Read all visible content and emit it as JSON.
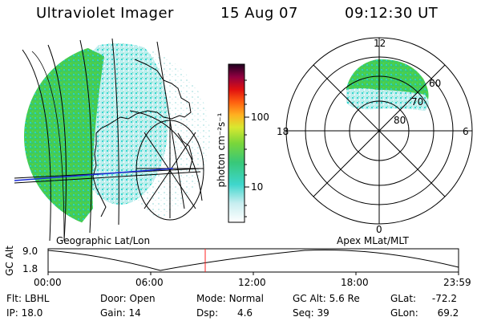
{
  "header": {
    "instrument": "Ultraviolet Imager",
    "date": "15 Aug 07",
    "time": "09:12:30 UT"
  },
  "colorbar": {
    "label": "photon cm⁻²s⁻¹",
    "ticks": [
      {
        "value": 100,
        "label": "100"
      },
      {
        "value": 10,
        "label": "10"
      }
    ],
    "range": [
      2,
      700
    ]
  },
  "map_panels": {
    "left_caption": "Geographic Lat/Lon",
    "right_caption": "Apex MLat/MLT"
  },
  "polar_plot": {
    "mlt_labels": {
      "top": "12",
      "bottom": "0",
      "left": "18",
      "right": "6"
    },
    "lat_rings": [
      {
        "lat": 60,
        "label": "60"
      },
      {
        "lat": 70,
        "label": "70"
      },
      {
        "lat": 80,
        "label": "80"
      }
    ]
  },
  "altitude_plot": {
    "axis_label": "GC Alt",
    "y_ticks": [
      "9.0",
      "1.8"
    ],
    "y_range": [
      1.8,
      9.0
    ],
    "x_ticks": [
      "00:00",
      "06:00",
      "12:00",
      "18:00",
      "23:59"
    ],
    "current_time_fraction": 0.385
  },
  "status": {
    "filter": {
      "label": "Flt:",
      "value": "LBHL"
    },
    "door": {
      "label": "Door:",
      "value": "Open"
    },
    "mode": {
      "label": "Mode:",
      "value": "Normal"
    },
    "gc_alt": {
      "label": "GC Alt:",
      "value": "5.6 Re"
    },
    "glat": {
      "label": "GLat:",
      "value": "-72.2"
    },
    "ip": {
      "label": "IP:",
      "value": "18.0"
    },
    "gain": {
      "label": "Gain:",
      "value": "14"
    },
    "dsp": {
      "label": "Dsp:",
      "value": "4.6"
    },
    "seq": {
      "label": "Seq:",
      "value": "39"
    },
    "glon": {
      "label": "GLon:",
      "value": "69.2"
    }
  },
  "colors": {
    "accent_red": "#ff2020",
    "track_blue": "#1a2bd8",
    "aurora_green": "#3ccd3c",
    "aurora_cyan": "#2fd6d2"
  }
}
